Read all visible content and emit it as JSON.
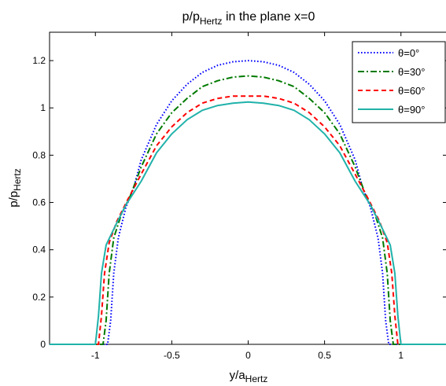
{
  "chart_data": {
    "type": "line",
    "title": {
      "main": "p/p",
      "sub": "Hertz",
      "rest": " in the plane x=0"
    },
    "xlabel": {
      "main": "y/a",
      "sub": "Hertz"
    },
    "ylabel": {
      "main": "p/p",
      "sub": "Hertz"
    },
    "xlim": [
      -1.3,
      1.3
    ],
    "ylim": [
      0,
      1.32
    ],
    "xticks": [
      -1,
      -0.5,
      0,
      0.5,
      1
    ],
    "xtick_labels": [
      "-1",
      "-0.5",
      "0",
      "0.5",
      "1"
    ],
    "yticks": [
      0,
      0.2,
      0.4,
      0.6,
      0.8,
      1,
      1.2
    ],
    "ytick_labels": [
      "0",
      "0.2",
      "0.4",
      "0.6",
      "0.8",
      "1",
      "1.2"
    ],
    "grid": false,
    "legend_position": "top-right",
    "series": [
      {
        "name": "θ=0°",
        "color": "#0000ff",
        "style": "dotted",
        "points": [
          [
            -1.3,
            0
          ],
          [
            -0.92,
            0
          ],
          [
            -0.9,
            0.1
          ],
          [
            -0.88,
            0.3
          ],
          [
            -0.85,
            0.45
          ],
          [
            -0.8,
            0.58
          ],
          [
            -0.75,
            0.66
          ],
          [
            -0.7,
            0.78
          ],
          [
            -0.6,
            0.93
          ],
          [
            -0.5,
            1.03
          ],
          [
            -0.4,
            1.1
          ],
          [
            -0.3,
            1.15
          ],
          [
            -0.2,
            1.18
          ],
          [
            -0.1,
            1.195
          ],
          [
            0,
            1.2
          ],
          [
            0.1,
            1.195
          ],
          [
            0.2,
            1.18
          ],
          [
            0.3,
            1.15
          ],
          [
            0.4,
            1.1
          ],
          [
            0.5,
            1.03
          ],
          [
            0.6,
            0.93
          ],
          [
            0.7,
            0.78
          ],
          [
            0.75,
            0.66
          ],
          [
            0.8,
            0.58
          ],
          [
            0.85,
            0.45
          ],
          [
            0.88,
            0.3
          ],
          [
            0.9,
            0.1
          ],
          [
            0.92,
            0
          ],
          [
            1.3,
            0
          ]
        ]
      },
      {
        "name": "θ=30°",
        "color": "#007a00",
        "style": "dashdot",
        "points": [
          [
            -1.3,
            0
          ],
          [
            -0.95,
            0
          ],
          [
            -0.93,
            0.1
          ],
          [
            -0.91,
            0.3
          ],
          [
            -0.88,
            0.45
          ],
          [
            -0.83,
            0.55
          ],
          [
            -0.77,
            0.63
          ],
          [
            -0.7,
            0.75
          ],
          [
            -0.6,
            0.89
          ],
          [
            -0.5,
            0.98
          ],
          [
            -0.4,
            1.04
          ],
          [
            -0.3,
            1.09
          ],
          [
            -0.2,
            1.115
          ],
          [
            -0.1,
            1.13
          ],
          [
            0,
            1.135
          ],
          [
            0.1,
            1.13
          ],
          [
            0.2,
            1.115
          ],
          [
            0.3,
            1.09
          ],
          [
            0.4,
            1.04
          ],
          [
            0.5,
            0.98
          ],
          [
            0.6,
            0.89
          ],
          [
            0.7,
            0.75
          ],
          [
            0.77,
            0.63
          ],
          [
            0.83,
            0.55
          ],
          [
            0.88,
            0.45
          ],
          [
            0.91,
            0.3
          ],
          [
            0.93,
            0.1
          ],
          [
            0.95,
            0
          ],
          [
            1.3,
            0
          ]
        ]
      },
      {
        "name": "θ=60°",
        "color": "#ff0000",
        "style": "dashed",
        "points": [
          [
            -1.3,
            0
          ],
          [
            -0.98,
            0
          ],
          [
            -0.96,
            0.12
          ],
          [
            -0.94,
            0.3
          ],
          [
            -0.91,
            0.43
          ],
          [
            -0.86,
            0.52
          ],
          [
            -0.79,
            0.61
          ],
          [
            -0.7,
            0.72
          ],
          [
            -0.6,
            0.84
          ],
          [
            -0.5,
            0.92
          ],
          [
            -0.4,
            0.98
          ],
          [
            -0.3,
            1.02
          ],
          [
            -0.2,
            1.04
          ],
          [
            -0.1,
            1.05
          ],
          [
            0,
            1.05
          ],
          [
            0.1,
            1.05
          ],
          [
            0.2,
            1.04
          ],
          [
            0.3,
            1.02
          ],
          [
            0.4,
            0.98
          ],
          [
            0.5,
            0.92
          ],
          [
            0.6,
            0.84
          ],
          [
            0.7,
            0.72
          ],
          [
            0.79,
            0.61
          ],
          [
            0.86,
            0.52
          ],
          [
            0.91,
            0.43
          ],
          [
            0.94,
            0.3
          ],
          [
            0.96,
            0.12
          ],
          [
            0.98,
            0
          ],
          [
            1.3,
            0
          ]
        ]
      },
      {
        "name": "θ=90°",
        "color": "#20b2aa",
        "style": "solid",
        "points": [
          [
            -1.3,
            0
          ],
          [
            -1.0,
            0
          ],
          [
            -0.98,
            0.12
          ],
          [
            -0.96,
            0.3
          ],
          [
            -0.93,
            0.42
          ],
          [
            -0.87,
            0.5
          ],
          [
            -0.8,
            0.59
          ],
          [
            -0.7,
            0.69
          ],
          [
            -0.6,
            0.81
          ],
          [
            -0.5,
            0.89
          ],
          [
            -0.4,
            0.95
          ],
          [
            -0.3,
            0.99
          ],
          [
            -0.2,
            1.01
          ],
          [
            -0.1,
            1.02
          ],
          [
            0,
            1.025
          ],
          [
            0.1,
            1.02
          ],
          [
            0.2,
            1.01
          ],
          [
            0.3,
            0.99
          ],
          [
            0.4,
            0.95
          ],
          [
            0.5,
            0.89
          ],
          [
            0.6,
            0.81
          ],
          [
            0.7,
            0.69
          ],
          [
            0.8,
            0.59
          ],
          [
            0.87,
            0.5
          ],
          [
            0.93,
            0.42
          ],
          [
            0.96,
            0.3
          ],
          [
            0.98,
            0.12
          ],
          [
            1.0,
            0
          ],
          [
            1.3,
            0
          ]
        ]
      }
    ]
  }
}
